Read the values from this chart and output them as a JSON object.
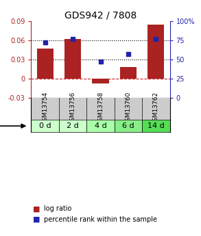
{
  "title": "GDS942 / 7808",
  "samples": [
    "GSM13754",
    "GSM13756",
    "GSM13758",
    "GSM13760",
    "GSM13762"
  ],
  "time_labels": [
    "0 d",
    "2 d",
    "4 d",
    "6 d",
    "14 d"
  ],
  "log_ratio": [
    0.047,
    0.062,
    -0.008,
    0.018,
    0.085
  ],
  "percentile": [
    72,
    77,
    47,
    57,
    77
  ],
  "bar_color": "#AA2222",
  "dot_color": "#2222AA",
  "left_ylim": [
    -0.03,
    0.09
  ],
  "right_ylim": [
    0,
    100
  ],
  "left_yticks": [
    -0.03,
    0,
    0.03,
    0.06,
    0.09
  ],
  "right_yticks": [
    0,
    25,
    50,
    75,
    100
  ],
  "left_yticklabels": [
    "-0.03",
    "0",
    "0.03",
    "0.06",
    "0.09"
  ],
  "right_yticklabels": [
    "0",
    "25",
    "50",
    "75",
    "100%"
  ],
  "hline_y": [
    0.03,
    0.06
  ],
  "zero_line_y": 0,
  "background_color": "#ffffff",
  "gsm_bg": "#cccccc",
  "time_bg_colors": [
    "#ccffcc",
    "#ccffcc",
    "#aaffaa",
    "#88ee88",
    "#55dd55"
  ],
  "title_fontsize": 10,
  "tick_fontsize": 7,
  "legend_fontsize": 7,
  "gsm_fontsize": 6.5
}
